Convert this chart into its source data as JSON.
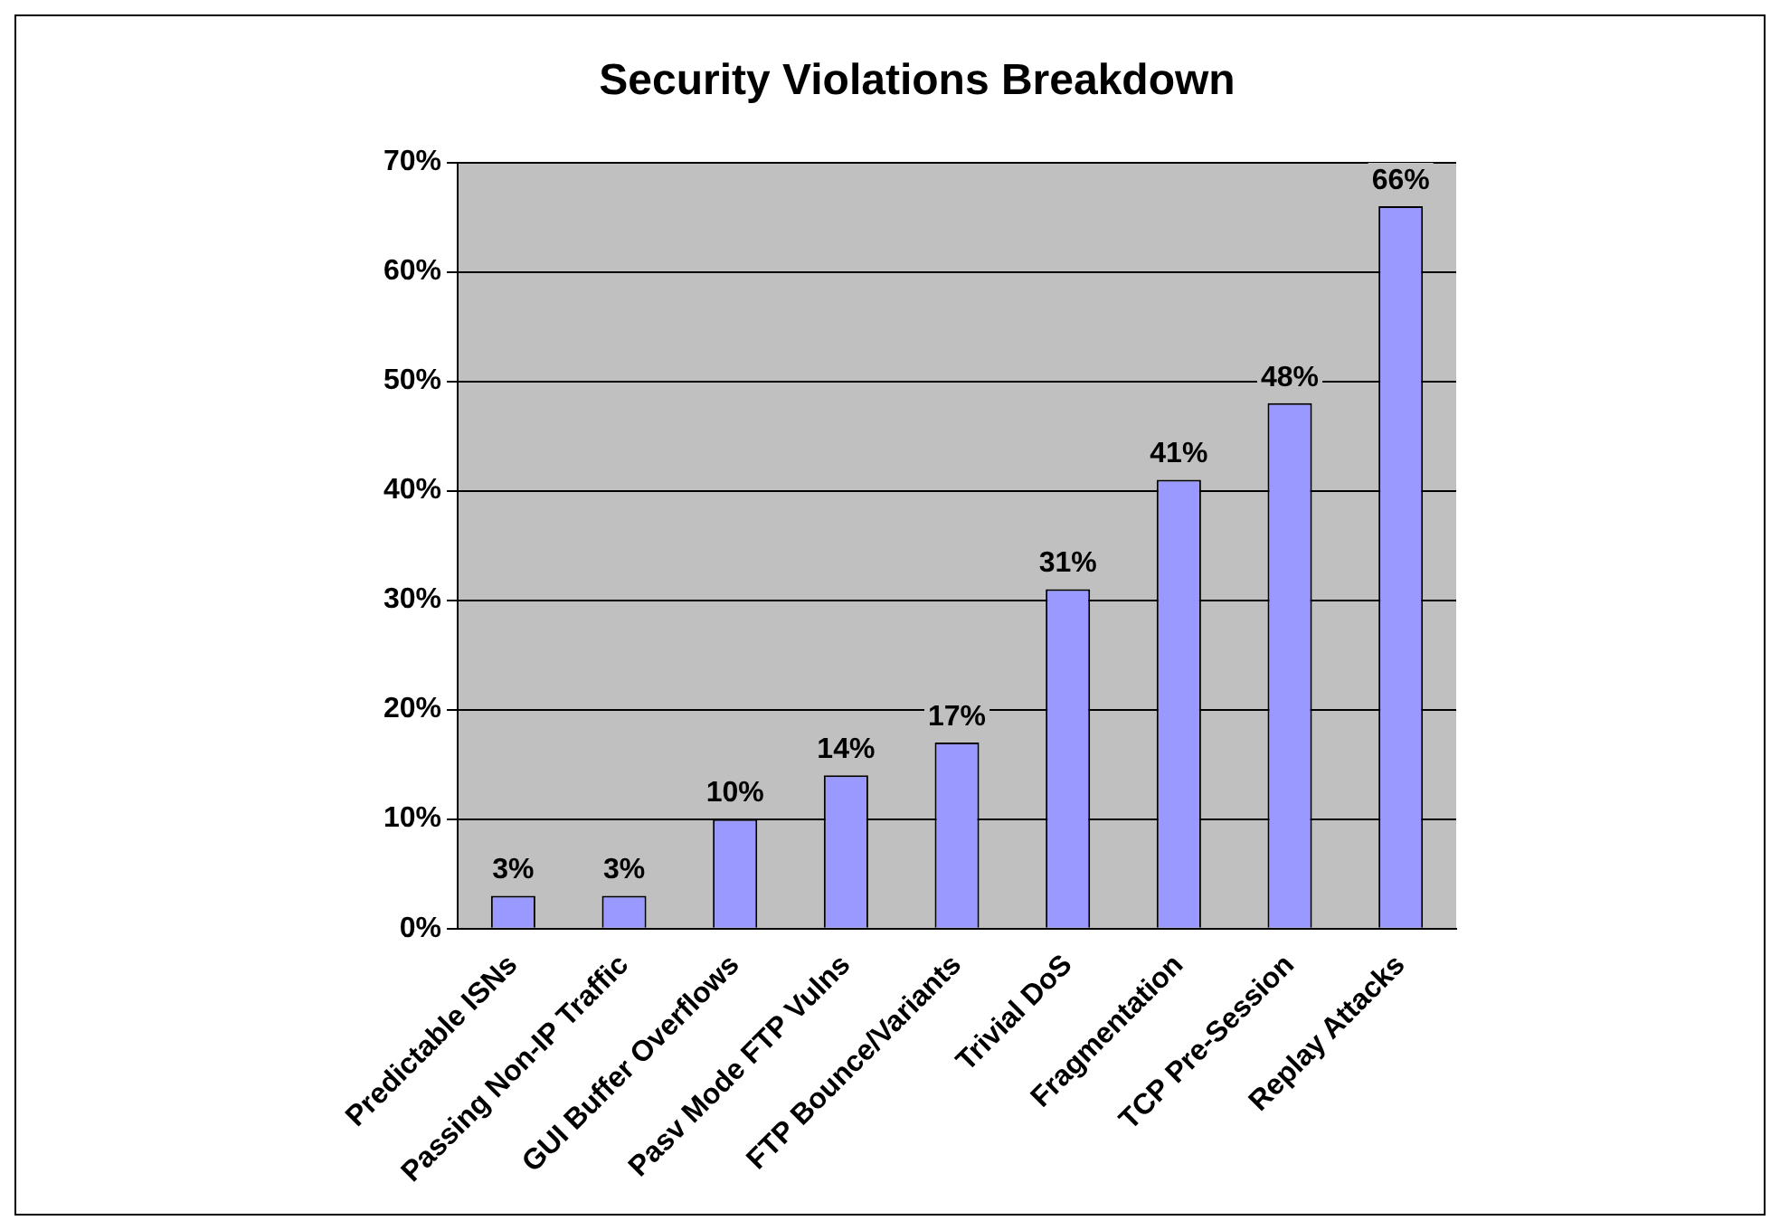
{
  "chart_data": {
    "type": "bar",
    "title": "Security Violations Breakdown",
    "categories": [
      "Predictable ISNs",
      "Passing Non-IP Traffic",
      "GUI Buffer Overflows",
      "Pasv Mode FTP Vulns",
      "FTP Bounce/Variants",
      "Trivial DoS",
      "Fragmentation",
      "TCP Pre-Session",
      "Replay Attacks"
    ],
    "values": [
      3,
      3,
      10,
      14,
      17,
      31,
      41,
      48,
      66
    ],
    "value_labels": [
      "3%",
      "3%",
      "10%",
      "14%",
      "17%",
      "31%",
      "41%",
      "48%",
      "66%"
    ],
    "color": "#9999ff",
    "ylim": [
      0,
      70
    ],
    "yticks": [
      {
        "value": 0,
        "label": "0%"
      },
      {
        "value": 10,
        "label": "10%"
      },
      {
        "value": 20,
        "label": "20%"
      },
      {
        "value": 30,
        "label": "30%"
      },
      {
        "value": 40,
        "label": "40%"
      },
      {
        "value": 50,
        "label": "50%"
      },
      {
        "value": 60,
        "label": "60%"
      },
      {
        "value": 70,
        "label": "70%"
      }
    ],
    "grid": "y",
    "legend": false
  }
}
